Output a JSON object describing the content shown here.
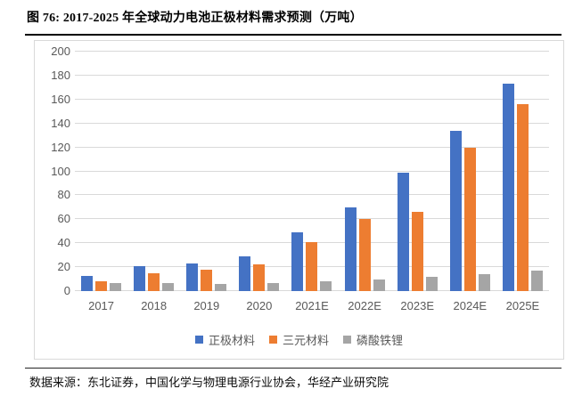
{
  "header": {
    "title": "图 76: 2017-2025 年全球动力电池正极材料需求预测（万吨）"
  },
  "footer": {
    "source": "数据来源：东北证券，中国化学与物理电源行业协会，华经产业研究院"
  },
  "chart_data": {
    "type": "bar",
    "title": "2017-2025 年全球动力电池正极材料需求预测（万吨）",
    "categories": [
      "2017",
      "2018",
      "2019",
      "2020",
      "2021E",
      "2022E",
      "2023E",
      "2024E",
      "2025E"
    ],
    "series": [
      {
        "name": "正极材料",
        "color": "#4472C4",
        "values": [
          13,
          21,
          23,
          29,
          49,
          70,
          99,
          134,
          173
        ]
      },
      {
        "name": "三元材料",
        "color": "#ED7D31",
        "values": [
          8,
          15,
          18,
          22,
          41,
          60,
          66,
          120,
          156
        ]
      },
      {
        "name": "磷酸铁锂",
        "color": "#A5A5A5",
        "values": [
          7,
          7,
          6,
          7,
          8,
          10,
          12,
          14,
          17
        ]
      }
    ],
    "xlabel": "",
    "ylabel": "",
    "ylim": [
      0,
      200
    ],
    "ytick_step": 20,
    "grid": true,
    "legend_position": "bottom",
    "gridline_color": "#D9D9D9",
    "axis_text_color": "#595959",
    "frame_border_color": "#D9D9D9"
  }
}
